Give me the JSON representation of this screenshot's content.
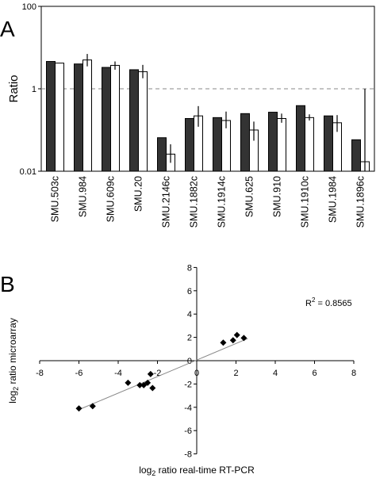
{
  "chart_data": [
    {
      "panel": "A",
      "type": "bar",
      "ylabel": "Ratio",
      "yscale": "log",
      "ylim": [
        0.01,
        100
      ],
      "yticks": [
        "0.01",
        "1",
        "100"
      ],
      "reference_line": 1,
      "categories": [
        "SMU.503c",
        "SMU.984",
        "SMU.609c",
        "SMU.20",
        "SMU.2146c",
        "SMU.1882c",
        "SMU.1914c",
        "SMU.625",
        "SMU.910",
        "SMU.1910c",
        "SMU.1984",
        "SMU.1896c"
      ],
      "series": [
        {
          "color": "#333333",
          "values": [
            4.6,
            4.0,
            3.3,
            2.9,
            0.065,
            0.19,
            0.2,
            0.25,
            0.27,
            0.39,
            0.22,
            0.058
          ]
        },
        {
          "color": "#ffffff",
          "values": [
            4.2,
            5.0,
            3.7,
            2.6,
            0.026,
            0.22,
            0.17,
            0.1,
            0.19,
            0.2,
            0.15,
            0.017
          ],
          "error_low": [
            4.2,
            3.5,
            2.9,
            1.8,
            0.016,
            0.12,
            0.11,
            0.055,
            0.15,
            0.17,
            0.09,
            0.01
          ],
          "error_high": [
            4.2,
            7.0,
            4.6,
            3.8,
            0.045,
            0.38,
            0.28,
            0.16,
            0.25,
            0.24,
            0.23,
            1.0
          ]
        }
      ]
    },
    {
      "panel": "B",
      "type": "scatter",
      "xlabel": {
        "pre": "log",
        "sub": "2",
        "post": " ratio real-time RT-PCR"
      },
      "ylabel": {
        "pre": "log",
        "sub": "2",
        "post": " ratio microarray"
      },
      "xlim": [
        -8,
        8
      ],
      "ylim": [
        -8,
        8
      ],
      "xticks": [
        -8,
        -6,
        -4,
        -2,
        0,
        2,
        4,
        6,
        8
      ],
      "yticks": [
        -8,
        -6,
        -4,
        -2,
        0,
        2,
        4,
        6,
        8
      ],
      "annotation": {
        "pre": "R",
        "sup": "2",
        "post": " = 0.8565"
      },
      "trendline": {
        "x": [
          -6.0,
          2.6
        ],
        "y": [
          -4.2,
          1.9
        ]
      },
      "points": [
        {
          "x": -6.0,
          "y": -4.1
        },
        {
          "x": -5.3,
          "y": -3.9
        },
        {
          "x": -3.5,
          "y": -1.9
        },
        {
          "x": -2.9,
          "y": -2.1
        },
        {
          "x": -2.7,
          "y": -2.1
        },
        {
          "x": -2.5,
          "y": -1.9
        },
        {
          "x": -2.35,
          "y": -1.15
        },
        {
          "x": -2.25,
          "y": -2.35
        },
        {
          "x": 1.35,
          "y": 1.55
        },
        {
          "x": 1.85,
          "y": 1.75
        },
        {
          "x": 2.05,
          "y": 2.2
        },
        {
          "x": 2.4,
          "y": 1.95
        }
      ]
    }
  ],
  "panel_labels": {
    "a": "A",
    "b": "B"
  }
}
